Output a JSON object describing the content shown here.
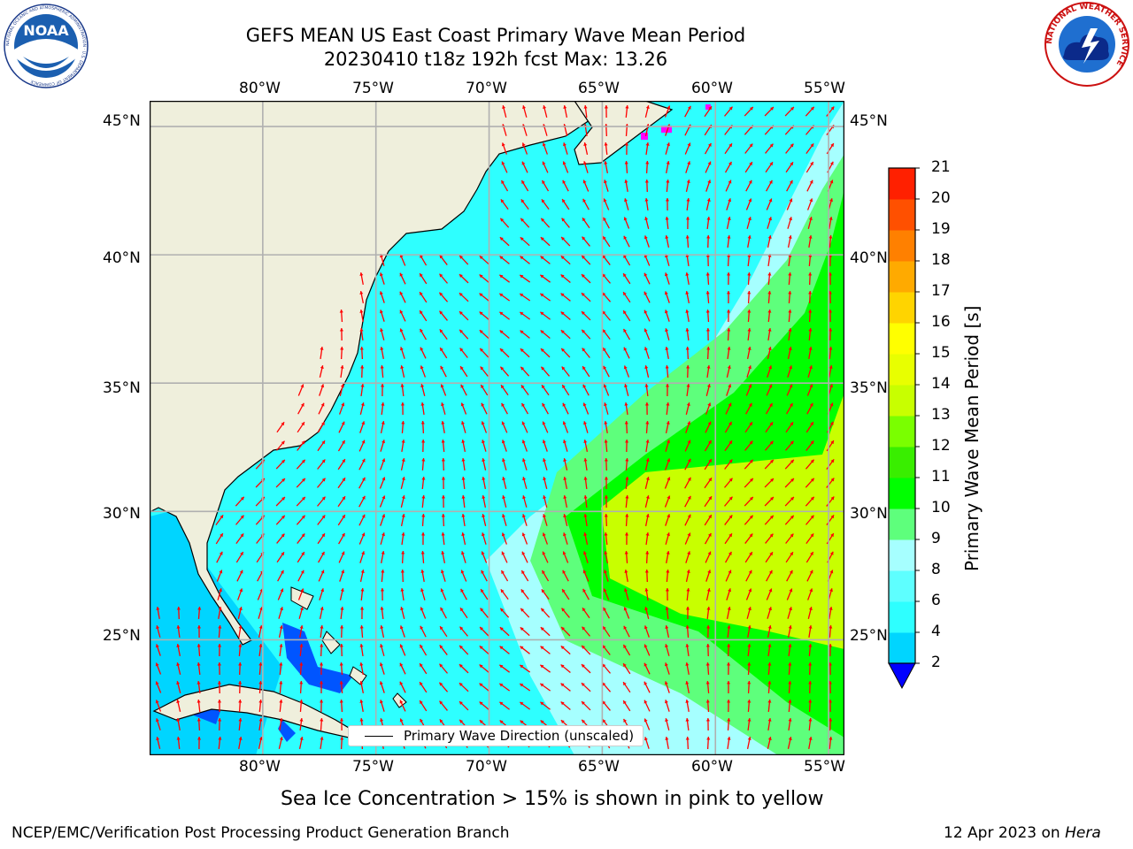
{
  "title": {
    "line1": "GEFS MEAN US East Coast Primary Wave Mean Period",
    "line2": "20230410 t18z 192h fcst   Max: 13.26"
  },
  "map": {
    "lon_labels": [
      "80°W",
      "75°W",
      "70°W",
      "65°W",
      "60°W",
      "55°W"
    ],
    "lat_labels": [
      "45°N",
      "40°N",
      "35°N",
      "30°N",
      "25°N"
    ],
    "lon_range": [
      -85,
      -54.3
    ],
    "lat_range": [
      20.5,
      46
    ],
    "land_color": "#efefdc",
    "grid_color": "#b0b0b0",
    "arrow_color": "#ff0000"
  },
  "legend": {
    "label": "Primary Wave Direction (unscaled)"
  },
  "colorbar": {
    "label": "Primary Wave Mean Period [s]",
    "ticks": [
      "2",
      "4",
      "6",
      "8",
      "9",
      "10",
      "11",
      "12",
      "13",
      "14",
      "15",
      "16",
      "17",
      "18",
      "19",
      "20",
      "21"
    ],
    "colors": [
      "#0055ff",
      "#00d5ff",
      "#2effff",
      "#5effff",
      "#a6ffff",
      "#5eff7c",
      "#00ff00",
      "#39ee00",
      "#7aff00",
      "#c8ff00",
      "#e8ff00",
      "#ffff00",
      "#ffd400",
      "#ffaa00",
      "#ff8000",
      "#ff5000",
      "#ff2000",
      "#ff0000"
    ],
    "extend_color": "#0000ff"
  },
  "subtitle": "Sea Ice Concentration > 15% is shown in pink to yellow",
  "footer": {
    "left": "NCEP/EMC/Verification Post Processing Product Generation Branch",
    "date": "12 Apr 2023 on ",
    "host": "Hera"
  },
  "logos": {
    "noaa_text": "NOAA",
    "noaa_ring": "NATIONAL OCEANIC AND ATMOSPHERIC ADMINISTRATION · U.S. DEPARTMENT OF COMMERCE",
    "nws_ring": "NATIONAL WEATHER SERVICE"
  }
}
